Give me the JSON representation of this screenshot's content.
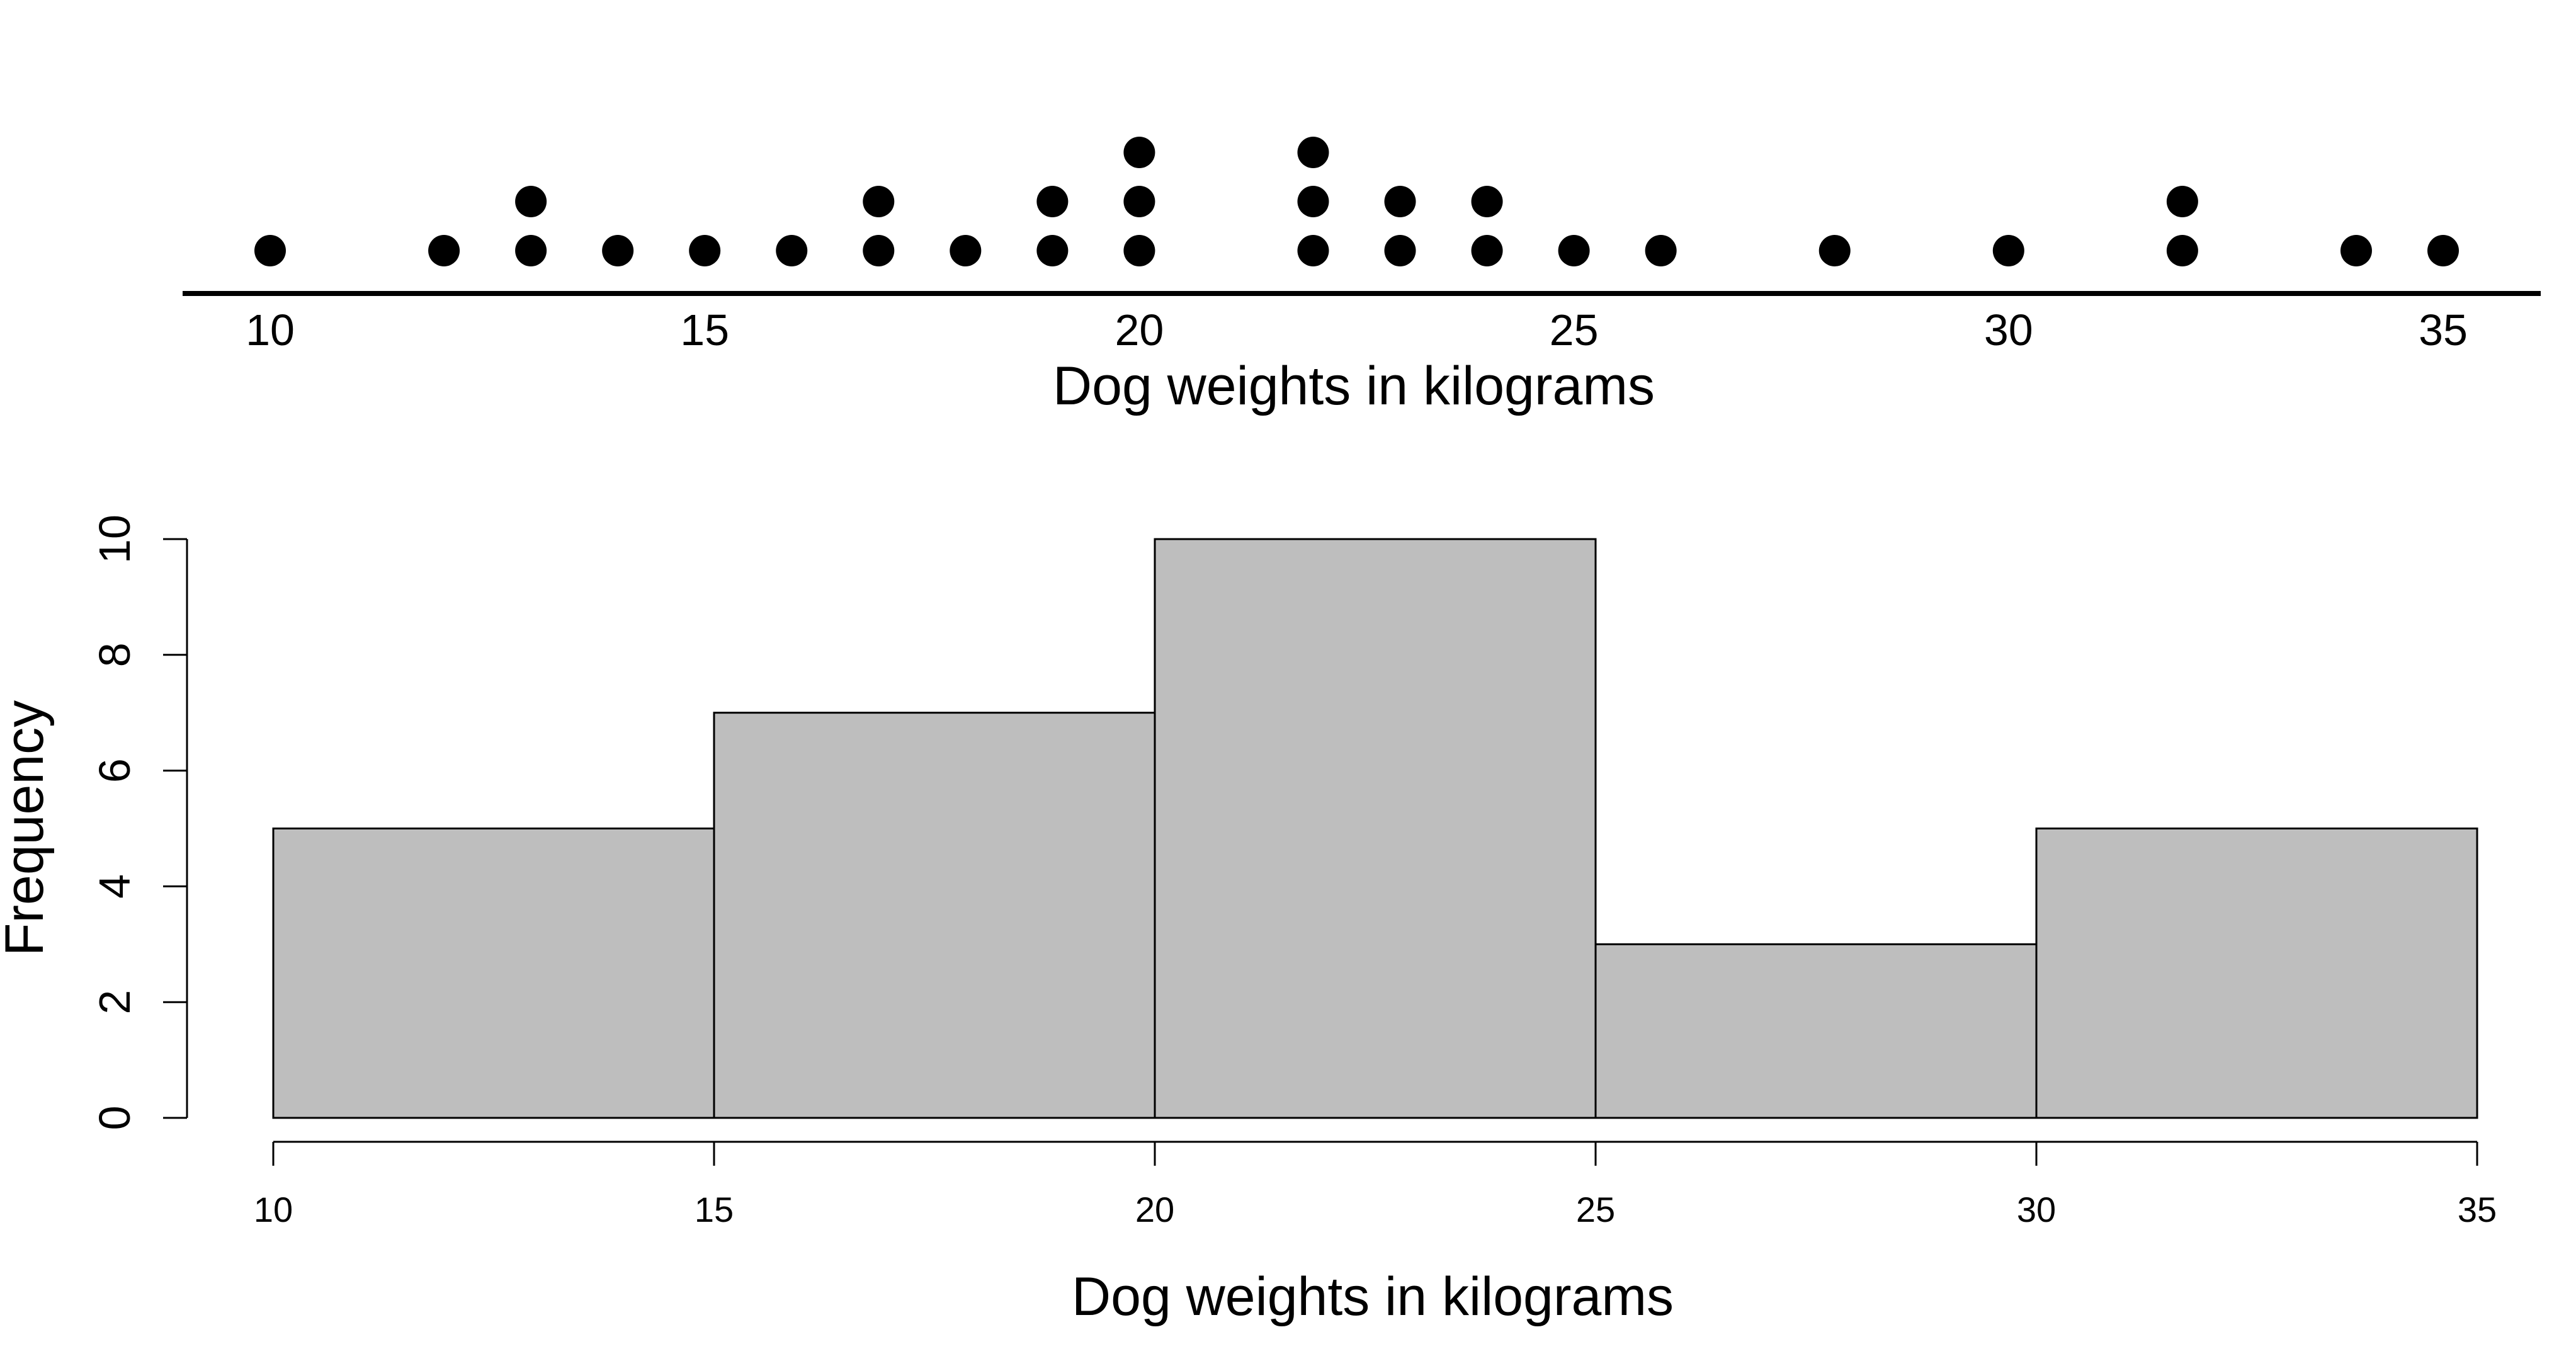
{
  "chart_data": [
    {
      "type": "scatter",
      "subtype": "dot-plot",
      "xlabel": "Dog weights in kilograms",
      "xlim": [
        10,
        35
      ],
      "xticks": [
        10,
        15,
        20,
        25,
        30,
        35
      ],
      "points": [
        10,
        12,
        13,
        13,
        14,
        15,
        16,
        17,
        17,
        18,
        19,
        19,
        20,
        20,
        20,
        22,
        22,
        22,
        23,
        23,
        24,
        24,
        25,
        26,
        28,
        30,
        32,
        32,
        34,
        35
      ],
      "marker_color": "#000000"
    },
    {
      "type": "bar",
      "subtype": "histogram",
      "bins": [
        [
          10,
          15
        ],
        [
          15,
          20
        ],
        [
          20,
          25
        ],
        [
          25,
          30
        ],
        [
          30,
          35
        ]
      ],
      "values": [
        5,
        7,
        10,
        3,
        5
      ],
      "xlabel": "Dog weights in kilograms",
      "ylabel": "Frequency",
      "xticks": [
        10,
        15,
        20,
        25,
        30,
        35
      ],
      "yticks": [
        0,
        2,
        4,
        6,
        8,
        10
      ],
      "ylim": [
        0,
        10
      ],
      "bar_color": "#bebebe",
      "edge_color": "#000000"
    }
  ]
}
